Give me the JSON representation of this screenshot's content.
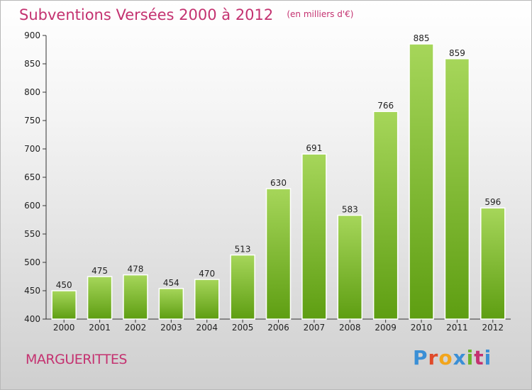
{
  "header": {
    "title": "Subventions Versées 2000 à 2012",
    "subtitle": "(en milliers d'€)"
  },
  "footer": {
    "commune": "MARGUERITTES",
    "brand": "Proxiti",
    "brand_colors": [
      "#3a8fd6",
      "#e04a2a",
      "#f2a51c",
      "#3a8fd6",
      "#6ab42a",
      "#c43270",
      "#3a8fd6"
    ]
  },
  "colors": {
    "bar_light": "#a6d65a",
    "bar_dark": "#5e9e12",
    "title": "#c43270"
  },
  "chart_data": {
    "type": "bar",
    "title": "Subventions Versées 2000 à 2012",
    "subtitle": "(en milliers d'€)",
    "categories": [
      "2000",
      "2001",
      "2002",
      "2003",
      "2004",
      "2005",
      "2006",
      "2007",
      "2008",
      "2009",
      "2010",
      "2011",
      "2012"
    ],
    "values": [
      450,
      475,
      478,
      454,
      470,
      513,
      630,
      691,
      583,
      766,
      885,
      859,
      596
    ],
    "ylim": [
      400,
      900
    ],
    "yticks": [
      400,
      450,
      500,
      550,
      600,
      650,
      700,
      750,
      800,
      850,
      900
    ],
    "grid": false,
    "data_labels": true
  }
}
